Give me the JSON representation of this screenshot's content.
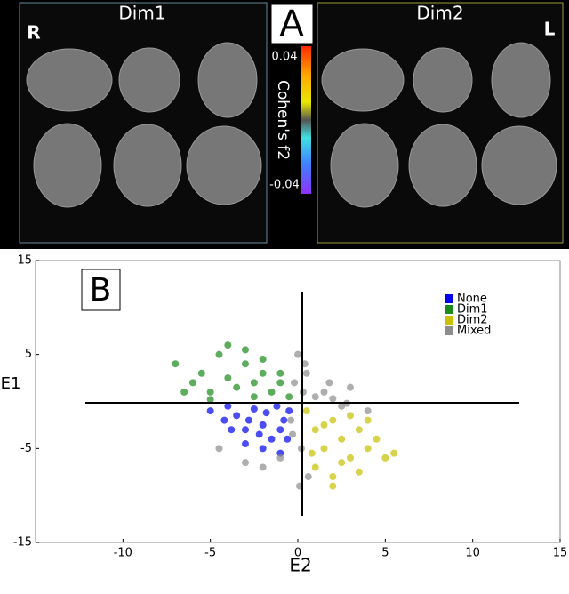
{
  "panel_a": {
    "label": "A",
    "left_title": "Dim1",
    "right_title": "Dim2",
    "left_side": "R",
    "right_side": "L",
    "colorbar_label": "Cohen's f2",
    "colorbar_top": "0.04",
    "colorbar_bottom": "-0.04"
  },
  "chart_data": {
    "type": "scatter",
    "panel_label": "B",
    "x_label": "E2",
    "y_label": "E1",
    "xlim": [
      -15,
      15
    ],
    "ylim": [
      -15,
      15
    ],
    "xticks": [
      -10,
      -5,
      0,
      5,
      10,
      15
    ],
    "yticks": [
      -15,
      -5,
      5,
      15
    ],
    "legend": "top-right",
    "series": [
      {
        "name": "None",
        "color": "#0000ee",
        "x": [
          -5,
          -4.2,
          -3.5,
          -3,
          -2.5,
          -2,
          -1.5,
          -1,
          -0.5,
          -4,
          -3,
          -2,
          -1,
          -2.8,
          -1.8,
          -0.8,
          -3.8,
          -2.2,
          -1.2,
          -0.6
        ],
        "values": [
          -1,
          -2,
          -1.5,
          -3,
          -0.8,
          -2.5,
          -4,
          -3,
          -1,
          -0.5,
          -4.5,
          -5,
          -5.5,
          -2,
          -1.2,
          -2,
          -3,
          -3.5,
          -0.5,
          -4
        ]
      },
      {
        "name": "Dim1",
        "color": "#1a8a1a",
        "x": [
          -7,
          -6,
          -5.5,
          -5,
          -4.5,
          -4,
          -3.5,
          -3,
          -2.5,
          -2,
          -1.5,
          -1,
          -0.5,
          -4,
          -3,
          -2,
          -1,
          -5,
          -6.5,
          -2.5
        ],
        "values": [
          4,
          2,
          3,
          1,
          5,
          2.5,
          1.5,
          4,
          0.5,
          3,
          1,
          2,
          0.5,
          6,
          5.5,
          4.5,
          3,
          0.2,
          1,
          2
        ]
      },
      {
        "name": "Dim2",
        "color": "#c8c000",
        "x": [
          0.5,
          1,
          1.5,
          2,
          2.5,
          3,
          3.5,
          4,
          4.5,
          5,
          5.5,
          1,
          2,
          3,
          1.5,
          2.5,
          3.5,
          0.8,
          4,
          2
        ],
        "values": [
          -1,
          -3,
          -5,
          -2,
          -4,
          -6,
          -3,
          -5,
          -4,
          -6,
          -5.5,
          -7,
          -8,
          -1.5,
          -2.5,
          -6.5,
          -7.5,
          -5.5,
          -2,
          -9
        ]
      },
      {
        "name": "Mixed",
        "color": "#8c8c8c",
        "x": [
          -0.2,
          0.3,
          0.5,
          -0.4,
          0.2,
          1,
          1.5,
          2,
          2.5,
          -1,
          -2,
          0.1,
          0,
          -0.3,
          0.4,
          3,
          4,
          -3,
          -4.5,
          1.8,
          2.8,
          0.6
        ],
        "values": [
          2,
          1,
          3,
          -2,
          -5,
          0.5,
          1,
          0.3,
          -0.5,
          -6,
          -7,
          -9,
          5,
          -3.5,
          4,
          1.5,
          -1,
          -6.5,
          -5,
          2,
          -0.2,
          -8
        ]
      }
    ]
  }
}
